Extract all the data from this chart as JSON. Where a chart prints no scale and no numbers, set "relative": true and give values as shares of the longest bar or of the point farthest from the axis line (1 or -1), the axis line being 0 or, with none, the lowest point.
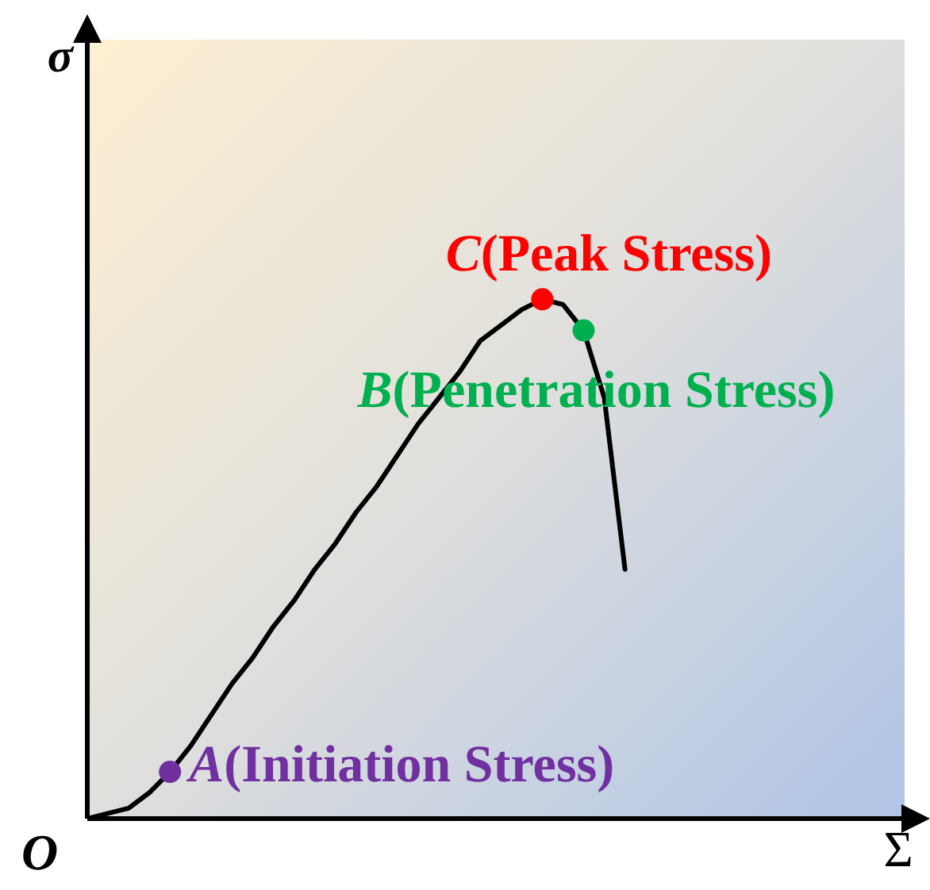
{
  "chart_data": {
    "type": "line",
    "relative": true,
    "ylabel": "σ",
    "annotations": [
      "O",
      "Σ",
      "A(Initiation Stress)",
      "C(Peak Stress)",
      "B(Penetration Stress)"
    ],
    "grid": false,
    "line_style": "solid",
    "categories": [
      null,
      null,
      null,
      null,
      null,
      null,
      null,
      null,
      null,
      null,
      null,
      null,
      null,
      null,
      null,
      null,
      null,
      null,
      null,
      null,
      null,
      null,
      null,
      null,
      null,
      null,
      null
    ],
    "series": [
      {
        "color": "#000000",
        "values": [
          0,
          0.01,
          0.02,
          0.05,
          0.09,
          0.14,
          0.2,
          0.26,
          0.31,
          0.37,
          0.42,
          0.48,
          0.53,
          0.59,
          0.64,
          0.7,
          0.76,
          0.81,
          0.86,
          0.92,
          0.95,
          0.98,
          1,
          0.99,
          0.94,
          0.81,
          0.48
        ],
        "colors": [
          null,
          null,
          null,
          null,
          "#7030a0",
          null,
          null,
          null,
          null,
          null,
          null,
          null,
          null,
          null,
          null,
          null,
          null,
          null,
          null,
          null,
          null,
          null,
          "#ff0000",
          null,
          "#00b050",
          null,
          null
        ]
      }
    ]
  }
}
